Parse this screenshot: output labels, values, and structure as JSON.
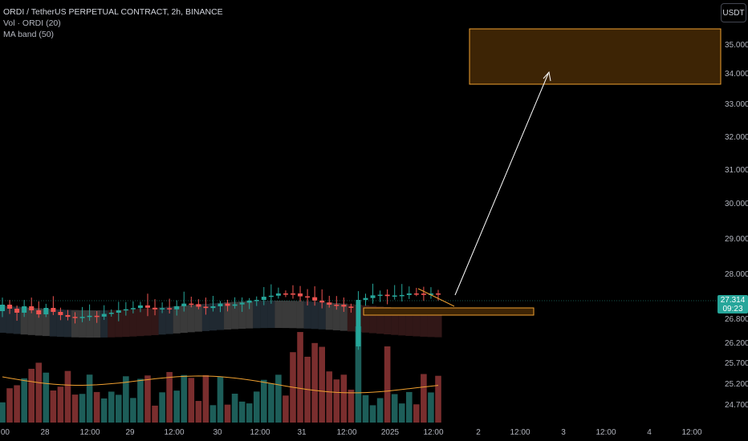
{
  "header": {
    "symbol_line": "ORDI / TetherUS PERPETUAL CONTRACT, 2h, BINANCE",
    "indicator_1": "Vol · ORDI (20)",
    "indicator_2": "MA band (50)",
    "currency": "USDT"
  },
  "last_price": {
    "value": "27.314",
    "countdown": "09:23"
  },
  "chart_data": {
    "type": "candlestick",
    "y_ticks": [
      "35.000",
      "34.000",
      "33.000",
      "32.000",
      "31.000",
      "30.000",
      "29.000",
      "28.000",
      "26.800",
      "26.200",
      "25.700",
      "25.200",
      "24.700"
    ],
    "x_ticks": [
      ":00",
      "28",
      "12:00",
      "29",
      "12:00",
      "30",
      "12:00",
      "31",
      "12:00",
      "2025",
      "12:00",
      "2",
      "12:00",
      "3",
      "12:00",
      "4",
      "12:00"
    ],
    "colors": {
      "up": "#26a69a",
      "down": "#ef5350",
      "volume_up": "#1d5e59",
      "volume_down": "#7a2e2e",
      "vol_ma": "#f0a030",
      "target": "#f0a030",
      "arrow": "#ffffff"
    },
    "annotations": {
      "target_zone": {
        "from": 33.7,
        "to": 35.4
      },
      "entry_zone": {
        "from": 26.88,
        "to": 27.02
      }
    }
  }
}
